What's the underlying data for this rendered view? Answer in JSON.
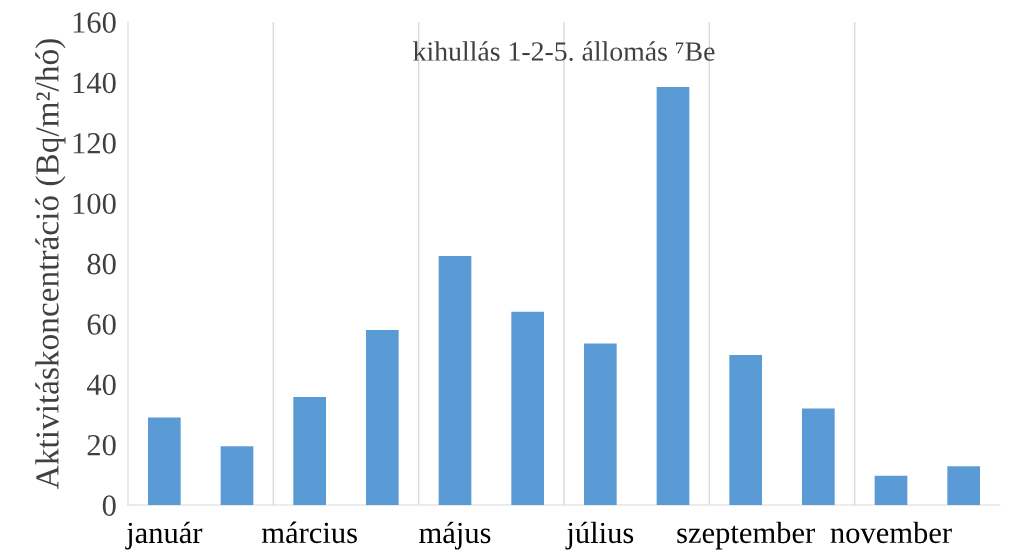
{
  "chart_data": {
    "type": "bar",
    "title": "kihullás 1-2-5. állomás ⁷Be",
    "ylabel": "Aktivitáskoncentráció (Bq/m²/hó)",
    "categories": [
      "január",
      null,
      "március",
      null,
      "május",
      null,
      "július",
      null,
      "szeptember",
      null,
      "november",
      null
    ],
    "values": [
      29,
      19.5,
      35.8,
      58,
      82.5,
      64,
      53.5,
      138.5,
      49.7,
      32,
      9.7,
      12.8
    ],
    "color": "#5b9bd5",
    "ylim": [
      0,
      160
    ],
    "yticks": [
      0,
      20,
      40,
      60,
      80,
      100,
      120,
      140,
      160
    ],
    "grid": "x",
    "legend": false
  }
}
